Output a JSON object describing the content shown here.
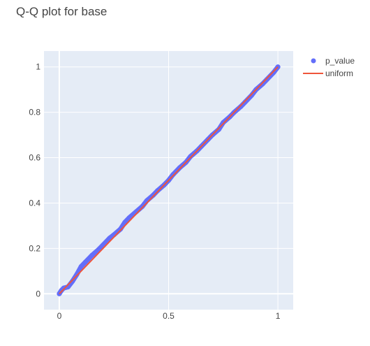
{
  "chart_data": {
    "type": "scatter",
    "title": "Q-Q plot for base",
    "xlabel": "",
    "ylabel": "",
    "xlim": [
      -0.07,
      1.07
    ],
    "ylim": [
      -0.07,
      1.07
    ],
    "xticks": [
      0,
      0.5,
      1
    ],
    "xtick_labels": [
      "0",
      "0.5",
      "1"
    ],
    "yticks": [
      0,
      0.2,
      0.4,
      0.6,
      0.8,
      1
    ],
    "ytick_labels": [
      "0",
      "0.2",
      "0.4",
      "0.6",
      "0.8",
      "1"
    ],
    "grid": true,
    "legend_position": "top-right",
    "background": "#e5ecf6",
    "series": [
      {
        "name": "p_value",
        "kind": "markers",
        "color": "#636efa",
        "x": [
          0.0,
          0.01,
          0.02,
          0.04,
          0.06,
          0.08,
          0.1,
          0.12,
          0.15,
          0.18,
          0.2,
          0.23,
          0.25,
          0.28,
          0.3,
          0.32,
          0.35,
          0.38,
          0.4,
          0.43,
          0.45,
          0.48,
          0.5,
          0.52,
          0.55,
          0.58,
          0.6,
          0.63,
          0.65,
          0.68,
          0.7,
          0.73,
          0.75,
          0.78,
          0.8,
          0.83,
          0.85,
          0.88,
          0.9,
          0.93,
          0.95,
          0.98,
          1.0
        ],
        "y": [
          0.0,
          0.015,
          0.025,
          0.03,
          0.055,
          0.085,
          0.12,
          0.14,
          0.17,
          0.195,
          0.215,
          0.245,
          0.26,
          0.285,
          0.315,
          0.335,
          0.36,
          0.385,
          0.41,
          0.435,
          0.455,
          0.48,
          0.5,
          0.525,
          0.555,
          0.58,
          0.605,
          0.63,
          0.65,
          0.68,
          0.7,
          0.725,
          0.755,
          0.78,
          0.8,
          0.825,
          0.845,
          0.875,
          0.9,
          0.925,
          0.945,
          0.975,
          1.0
        ]
      },
      {
        "name": "uniform",
        "kind": "line",
        "color": "#ef553b",
        "x": [
          0,
          1
        ],
        "y": [
          0,
          1
        ]
      }
    ]
  }
}
